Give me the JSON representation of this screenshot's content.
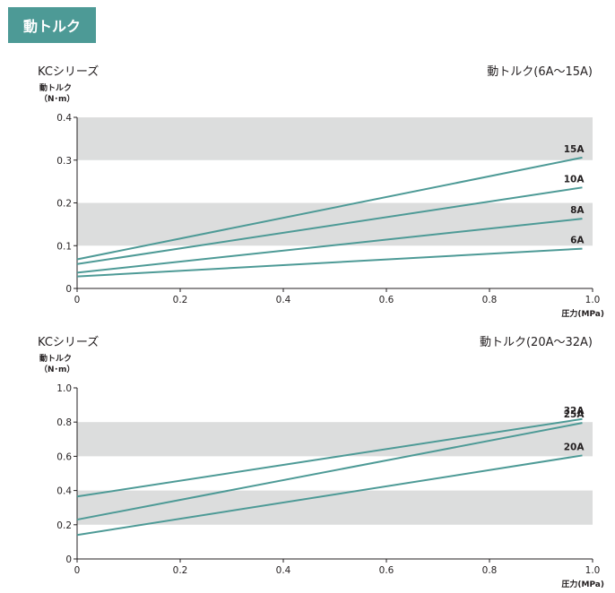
{
  "header": {
    "title": "動トルク"
  },
  "chart_data": [
    {
      "type": "line",
      "title": "KCシリーズ",
      "subtitle": "動トルク(6A〜15A)",
      "ylabel_line1": "動トルク",
      "ylabel_line2": "（N･m）",
      "xlabel": "圧力(MPa)",
      "xlim": [
        0,
        1.0
      ],
      "ylim": [
        0,
        0.4
      ],
      "xticks": [
        "0",
        "0.2",
        "0.4",
        "0.6",
        "0.8",
        "1.0"
      ],
      "yticks": [
        "0",
        "0.1",
        "0.2",
        "0.3",
        "0.4"
      ],
      "bands": [
        [
          0.1,
          0.2
        ],
        [
          0.3,
          0.4
        ]
      ],
      "line_color": "#4d9a96",
      "band_color": "#dcdddd",
      "series": [
        {
          "name": "15A",
          "x": [
            0,
            0.98
          ],
          "values": [
            0.068,
            0.306
          ]
        },
        {
          "name": "10A",
          "x": [
            0,
            0.98
          ],
          "values": [
            0.057,
            0.236
          ]
        },
        {
          "name": "8A",
          "x": [
            0,
            0.98
          ],
          "values": [
            0.037,
            0.163
          ]
        },
        {
          "name": "6A",
          "x": [
            0,
            0.98
          ],
          "values": [
            0.028,
            0.093
          ]
        }
      ]
    },
    {
      "type": "line",
      "title": "KCシリーズ",
      "subtitle": "動トルク(20A〜32A)",
      "ylabel_line1": "動トルク",
      "ylabel_line2": "（N･m）",
      "xlabel": "圧力(MPa)",
      "xlim": [
        0,
        1.0
      ],
      "ylim": [
        0,
        1.0
      ],
      "xticks": [
        "0",
        "0.2",
        "0.4",
        "0.6",
        "0.8",
        "1.0"
      ],
      "yticks": [
        "0",
        "0.2",
        "0.4",
        "0.6",
        "0.8",
        "1.0"
      ],
      "bands": [
        [
          0.2,
          0.4
        ],
        [
          0.6,
          0.8
        ]
      ],
      "line_color": "#4d9a96",
      "band_color": "#dcdddd",
      "series": [
        {
          "name": "32A",
          "x": [
            0,
            0.98
          ],
          "values": [
            0.365,
            0.818
          ]
        },
        {
          "name": "25A",
          "x": [
            0,
            0.98
          ],
          "values": [
            0.23,
            0.795
          ]
        },
        {
          "name": "20A",
          "x": [
            0,
            0.98
          ],
          "values": [
            0.14,
            0.605
          ]
        }
      ]
    }
  ]
}
